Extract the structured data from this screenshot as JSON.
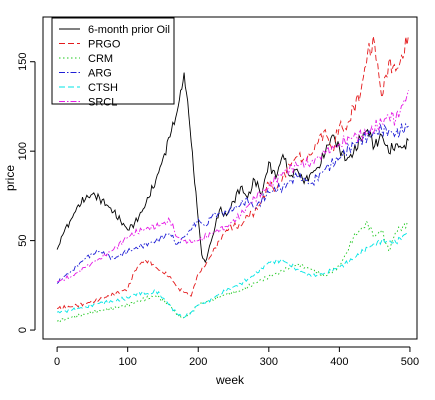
{
  "chart_data": {
    "type": "line",
    "title": "",
    "xlabel": "week",
    "ylabel": "price",
    "xlim": [
      -20,
      510
    ],
    "ylim": [
      -5,
      175
    ],
    "x_ticks": [
      0,
      100,
      200,
      300,
      400,
      500
    ],
    "y_ticks": [
      0,
      50,
      100,
      150
    ],
    "legend_position": "top-left",
    "grid": false,
    "series": [
      {
        "name": "6-month prior Oil",
        "color": "#000000",
        "dash": "solid",
        "x": [
          0,
          10,
          20,
          30,
          40,
          50,
          60,
          70,
          80,
          90,
          100,
          110,
          120,
          130,
          140,
          150,
          160,
          170,
          175,
          180,
          185,
          190,
          195,
          200,
          205,
          210,
          220,
          230,
          240,
          250,
          260,
          270,
          280,
          290,
          300,
          310,
          320,
          330,
          340,
          350,
          360,
          370,
          380,
          390,
          400,
          410,
          420,
          430,
          440,
          450,
          460,
          470,
          480,
          490,
          498
        ],
        "values": [
          45,
          55,
          62,
          70,
          73,
          76,
          74,
          70,
          66,
          61,
          56,
          60,
          66,
          74,
          84,
          96,
          108,
          122,
          134,
          144,
          128,
          105,
          82,
          62,
          42,
          38,
          52,
          67,
          64,
          72,
          80,
          74,
          84,
          76,
          94,
          85,
          98,
          86,
          90,
          82,
          88,
          91,
          99,
          109,
          102,
          95,
          99,
          107,
          112,
          103,
          109,
          99,
          104,
          102,
          106
        ]
      },
      {
        "name": "PRGO",
        "color": "#e41a1c",
        "dash": "dashed",
        "x": [
          0,
          20,
          40,
          60,
          80,
          100,
          110,
          120,
          130,
          140,
          150,
          160,
          170,
          180,
          190,
          200,
          210,
          220,
          230,
          240,
          250,
          260,
          270,
          280,
          290,
          300,
          310,
          320,
          330,
          340,
          350,
          360,
          370,
          380,
          390,
          400,
          410,
          420,
          430,
          440,
          450,
          460,
          470,
          480,
          490,
          498
        ],
        "values": [
          12,
          13,
          15,
          17,
          20,
          23,
          33,
          38,
          39,
          35,
          32,
          30,
          24,
          21,
          19,
          32,
          36,
          43,
          50,
          56,
          58,
          58,
          64,
          66,
          72,
          82,
          78,
          86,
          92,
          97,
          96,
          98,
          105,
          112,
          100,
          114,
          112,
          125,
          132,
          155,
          160,
          130,
          150,
          145,
          152,
          165
        ]
      },
      {
        "name": "CRM",
        "color": "#1ec81e",
        "dash": "dotted",
        "x": [
          0,
          20,
          40,
          60,
          80,
          100,
          120,
          140,
          160,
          170,
          180,
          190,
          200,
          220,
          240,
          260,
          280,
          300,
          320,
          340,
          360,
          380,
          400,
          410,
          420,
          430,
          440,
          450,
          460,
          470,
          480,
          490,
          498
        ],
        "values": [
          5,
          7,
          9,
          11,
          12,
          14,
          17,
          19,
          14,
          8,
          7,
          10,
          14,
          17,
          20,
          22,
          26,
          30,
          33,
          37,
          34,
          30,
          36,
          43,
          52,
          56,
          60,
          52,
          56,
          44,
          55,
          58,
          60
        ]
      },
      {
        "name": "ARG",
        "color": "#1f1fd6",
        "dash": "dashdot",
        "x": [
          0,
          10,
          20,
          40,
          50,
          60,
          70,
          80,
          100,
          120,
          140,
          160,
          170,
          180,
          190,
          200,
          210,
          220,
          240,
          260,
          270,
          280,
          300,
          320,
          340,
          360,
          380,
          400,
          420,
          440,
          460,
          480,
          498
        ],
        "values": [
          26,
          30,
          33,
          40,
          43,
          44,
          42,
          40,
          44,
          47,
          50,
          54,
          48,
          52,
          56,
          62,
          58,
          64,
          66,
          70,
          73,
          68,
          77,
          80,
          86,
          82,
          90,
          96,
          104,
          108,
          112,
          110,
          114
        ]
      },
      {
        "name": "CTSH",
        "color": "#00e5e5",
        "dash": "dashed",
        "x": [
          0,
          20,
          40,
          60,
          80,
          100,
          110,
          120,
          130,
          140,
          150,
          160,
          170,
          180,
          190,
          200,
          210,
          220,
          240,
          260,
          280,
          300,
          320,
          340,
          360,
          380,
          400,
          420,
          440,
          460,
          480,
          498
        ],
        "values": [
          10,
          11,
          13,
          15,
          16,
          18,
          20,
          21,
          20,
          22,
          18,
          14,
          9,
          7,
          10,
          14,
          15,
          18,
          22,
          26,
          31,
          38,
          39,
          34,
          30,
          32,
          35,
          40,
          46,
          50,
          49,
          55
        ]
      },
      {
        "name": "SRCL",
        "color": "#e51ae5",
        "dash": "dashdot",
        "x": [
          0,
          20,
          40,
          60,
          80,
          100,
          120,
          140,
          160,
          170,
          180,
          190,
          200,
          220,
          240,
          260,
          280,
          300,
          320,
          340,
          360,
          380,
          400,
          420,
          440,
          460,
          470,
          480,
          490,
          498
        ],
        "values": [
          27,
          30,
          35,
          40,
          45,
          52,
          56,
          58,
          61,
          52,
          50,
          49,
          50,
          54,
          58,
          64,
          74,
          80,
          88,
          92,
          94,
          99,
          104,
          108,
          110,
          116,
          120,
          118,
          126,
          134
        ]
      }
    ]
  }
}
